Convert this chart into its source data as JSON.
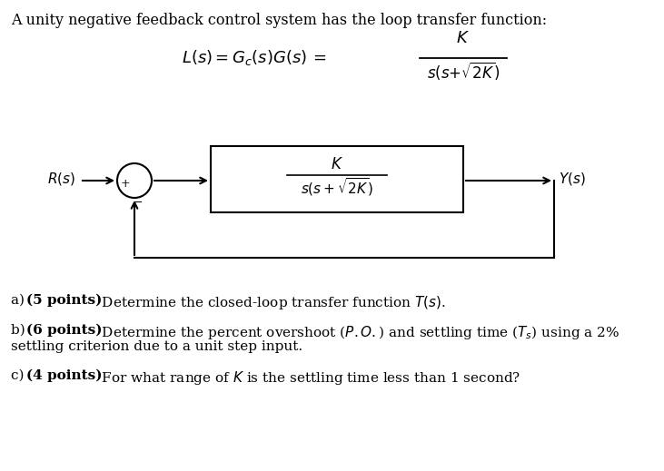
{
  "background_color": "#ffffff",
  "title_text": "A unity negative feedback control system has the loop transfer function:",
  "block_numerator": "$K$",
  "block_denominator": "$s(s + \\sqrt{2K})$",
  "label_R": "$R(s)$",
  "label_Y": "$Y(s)$",
  "label_plus": "+",
  "label_minus": "−",
  "text_color": "#000000",
  "line_color": "#000000",
  "box_color": "#000000",
  "font_size_title": 11.5,
  "font_size_formula": 13,
  "font_size_labels": 11,
  "font_size_questions": 11,
  "fig_width": 7.31,
  "fig_height": 5.19,
  "dpi": 100
}
